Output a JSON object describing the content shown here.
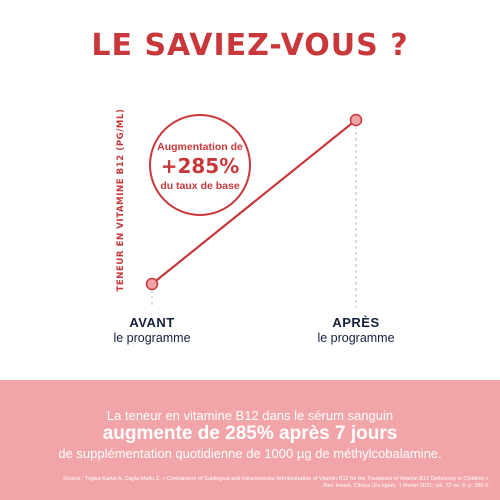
{
  "title": "LE SAVIEZ-VOUS ?",
  "chart_data": {
    "type": "line",
    "categories": [
      "AVANT",
      "APRÈS"
    ],
    "category_sublabels": [
      "le programme",
      "le programme"
    ],
    "values": [
      100,
      385
    ],
    "ylabel": "TENEUR EN VITAMINE B12 (PG/ML)",
    "annotation": {
      "line1": "Augmentation de",
      "line2": "+285%",
      "line3": "du taux de base"
    }
  },
  "colors": {
    "accent": "#c8383a",
    "navy": "#14213d",
    "panel": "#f2a5a8"
  },
  "panel": {
    "line1": "La teneur en vitamine B12 dans le sérum sanguin",
    "line2": "augmente de 285% après 7 jours",
    "line3": "de supplémentation quotidienne de 1000 µg de méthylcobalamine.",
    "source": "Source : Tugba-Kartal A, Cagla-Mutlu Z. « Comparison of Sublingual and Intramuscular Administration of Vitamin B12 for the Treatment of Vitamin B12 Deficiency in Children ». Rev. Invest. Clínica (En ligne). 1 février 2021; vol. 72 no. 6: p. 380-5."
  }
}
